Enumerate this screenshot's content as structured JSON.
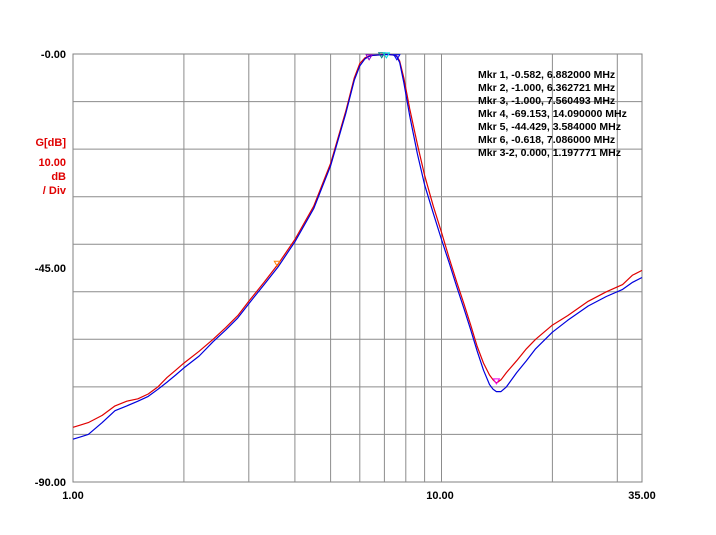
{
  "chart_data": {
    "type": "line",
    "x_scale": "log",
    "xlim": [
      1.0,
      35.0
    ],
    "ylim": [
      -90.0,
      0.0
    ],
    "grid": true,
    "x_tick_labels": [
      {
        "value": 1.0,
        "label": "1.00"
      },
      {
        "value": 10.0,
        "label": "10.00"
      },
      {
        "value": 35.0,
        "label": "35.00"
      }
    ],
    "y_tick_labels": [
      {
        "value": 0.0,
        "label": "-0.00"
      },
      {
        "value": -45.0,
        "label": "-45.00"
      },
      {
        "value": -90.0,
        "label": "-90.00"
      }
    ],
    "x_gridlines": [
      2,
      3,
      4,
      5,
      6,
      7,
      8,
      9,
      10,
      20,
      30
    ],
    "y_gridlines": [
      -10,
      -20,
      -30,
      -40,
      -50,
      -60,
      -70,
      -80
    ],
    "units": {
      "quantity": "G[dB]",
      "scale": "10.00",
      "unit": "dB",
      "per_div": "/ Div"
    },
    "series": [
      {
        "color": "#e00000",
        "x": [
          1.0,
          1.05,
          1.1,
          1.2,
          1.3,
          1.4,
          1.5,
          1.6,
          1.7,
          1.8,
          1.9,
          2.0,
          2.2,
          2.4,
          2.6,
          2.8,
          3.0,
          3.3,
          3.6,
          4.0,
          4.5,
          5.0,
          5.5,
          5.8,
          6.0,
          6.2,
          6.36,
          6.5,
          6.7,
          6.88,
          7.0,
          7.2,
          7.4,
          7.56,
          7.7,
          7.9,
          8.2,
          8.6,
          9.0,
          9.5,
          10.0,
          10.5,
          11.0,
          11.5,
          12.0,
          12.5,
          13.0,
          13.5,
          13.8,
          14.09,
          14.5,
          15.0,
          16.0,
          17.0,
          18.0,
          20.0,
          22.0,
          25.0,
          28.0,
          31.0,
          33.0,
          35.0
        ],
        "y": [
          -78.5,
          -78.0,
          -77.5,
          -76.0,
          -74.0,
          -73.0,
          -72.5,
          -71.5,
          -70.0,
          -68.0,
          -66.5,
          -65.0,
          -62.5,
          -60.0,
          -57.5,
          -55.0,
          -52.0,
          -48.0,
          -44.2,
          -39.0,
          -32.0,
          -23.0,
          -12.0,
          -5.0,
          -2.0,
          -0.8,
          -0.4,
          -0.3,
          -0.2,
          -0.1,
          -0.1,
          -0.1,
          -0.2,
          -0.4,
          -1.5,
          -5.0,
          -11.5,
          -19.0,
          -25.5,
          -32.0,
          -37.5,
          -43.0,
          -48.0,
          -52.5,
          -57.0,
          -61.5,
          -65.0,
          -67.5,
          -68.5,
          -69.2,
          -68.5,
          -67.0,
          -64.5,
          -62.0,
          -60.0,
          -57.0,
          -55.0,
          -52.0,
          -50.0,
          -48.5,
          -46.5,
          -45.5
        ]
      },
      {
        "color": "#0000dd",
        "x": [
          1.0,
          1.05,
          1.1,
          1.2,
          1.3,
          1.4,
          1.5,
          1.6,
          1.7,
          1.8,
          1.9,
          2.0,
          2.2,
          2.4,
          2.6,
          2.8,
          3.0,
          3.3,
          3.6,
          4.0,
          4.5,
          5.0,
          5.5,
          5.8,
          6.0,
          6.2,
          6.36,
          6.5,
          6.7,
          6.88,
          7.0,
          7.2,
          7.4,
          7.56,
          7.7,
          7.9,
          8.2,
          8.6,
          9.0,
          9.5,
          10.0,
          10.5,
          11.0,
          11.5,
          12.0,
          12.5,
          13.0,
          13.5,
          13.8,
          14.09,
          14.5,
          15.0,
          16.0,
          17.0,
          18.0,
          20.0,
          22.0,
          25.0,
          28.0,
          31.0,
          33.0,
          35.0
        ],
        "y": [
          -81.0,
          -80.5,
          -80.0,
          -77.5,
          -75.0,
          -74.0,
          -73.0,
          -72.0,
          -70.5,
          -69.0,
          -67.5,
          -66.0,
          -63.5,
          -60.5,
          -58.0,
          -55.5,
          -52.5,
          -48.5,
          -44.8,
          -39.5,
          -32.5,
          -23.5,
          -12.5,
          -5.5,
          -2.5,
          -1.0,
          -0.5,
          -0.3,
          -0.2,
          -0.2,
          -0.1,
          -0.1,
          -0.2,
          -0.5,
          -1.8,
          -6.0,
          -13.0,
          -21.0,
          -27.5,
          -33.5,
          -39.0,
          -44.0,
          -49.0,
          -53.5,
          -58.0,
          -62.5,
          -66.5,
          -69.5,
          -70.5,
          -71.0,
          -71.0,
          -70.0,
          -67.0,
          -64.5,
          -62.0,
          -58.5,
          -56.0,
          -53.0,
          -51.0,
          -49.5,
          -48.0,
          -47.0
        ]
      }
    ],
    "markers": [
      {
        "label": "Mkr 1, -0.582, 6.882000 MHz",
        "color": "#008080",
        "x": 6.882,
        "y": -0.582
      },
      {
        "label": "Mkr 2, -1.000, 6.362721 MHz",
        "color": "#8800cc",
        "x": 6.362721,
        "y": -1.0
      },
      {
        "label": "Mkr 3, -1.000, 7.560493 MHz",
        "color": "#0000ee",
        "x": 7.560493,
        "y": -1.0
      },
      {
        "label": "Mkr 4, -69.153, 14.090000 MHz",
        "color": "#ee00ee",
        "x": 14.09,
        "y": -69.153
      },
      {
        "label": "Mkr 5, -44.429, 3.584000 MHz",
        "color": "#ff8000",
        "x": 3.584,
        "y": -44.429
      },
      {
        "label": "Mkr 6, -0.618, 7.086000 MHz",
        "color": "#00dddd",
        "x": 7.086,
        "y": -0.618
      },
      {
        "label": "Mkr 3-2, 0.000, 1.197771 MHz",
        "color": "#000000"
      }
    ]
  }
}
